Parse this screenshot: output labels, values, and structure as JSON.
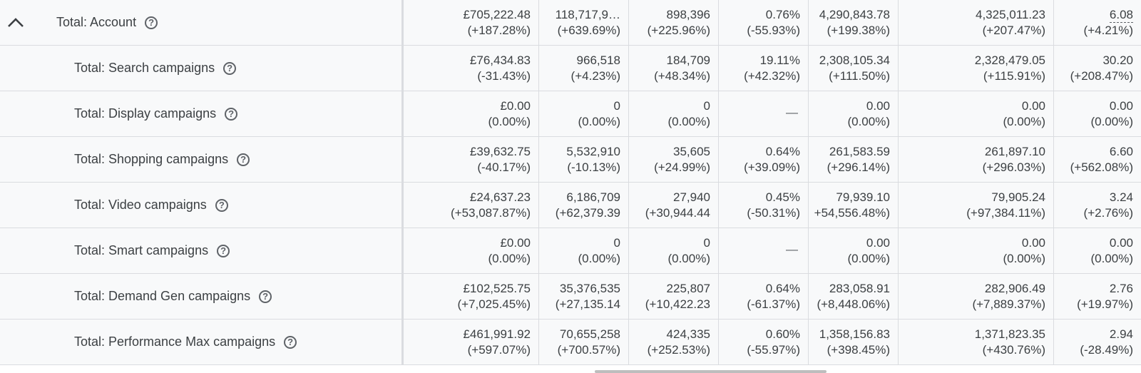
{
  "rows": [
    {
      "label": "Total: Account",
      "cells": [
        {
          "value": "£705,222.48",
          "change": "(+187.28%)"
        },
        {
          "value": "118,717,9…",
          "change": "(+639.69%)"
        },
        {
          "value": "898,396",
          "change": "(+225.96%)"
        },
        {
          "value": "0.76%",
          "change": "(-55.93%)"
        },
        {
          "value": "4,290,843.78",
          "change": "(+199.38%)"
        },
        {
          "value": "4,325,011.23",
          "change": "(+207.47%)"
        },
        {
          "value": "6.08",
          "change": "(+4.21%)"
        }
      ]
    },
    {
      "label": "Total: Search campaigns",
      "cells": [
        {
          "value": "£76,434.83",
          "change": "(-31.43%)"
        },
        {
          "value": "966,518",
          "change": "(+4.23%)"
        },
        {
          "value": "184,709",
          "change": "(+48.34%)"
        },
        {
          "value": "19.11%",
          "change": "(+42.32%)"
        },
        {
          "value": "2,308,105.34",
          "change": "(+111.50%)"
        },
        {
          "value": "2,328,479.05",
          "change": "(+115.91%)"
        },
        {
          "value": "30.20",
          "change": "(+208.47%)"
        }
      ]
    },
    {
      "label": "Total: Display campaigns",
      "cells": [
        {
          "value": "£0.00",
          "change": "(0.00%)"
        },
        {
          "value": "0",
          "change": "(0.00%)"
        },
        {
          "value": "0",
          "change": "(0.00%)"
        },
        {
          "value": "",
          "change": "",
          "dash": "—"
        },
        {
          "value": "0.00",
          "change": "(0.00%)"
        },
        {
          "value": "0.00",
          "change": "(0.00%)"
        },
        {
          "value": "0.00",
          "change": "(0.00%)"
        }
      ]
    },
    {
      "label": "Total: Shopping campaigns",
      "cells": [
        {
          "value": "£39,632.75",
          "change": "(-40.17%)"
        },
        {
          "value": "5,532,910",
          "change": "(-10.13%)"
        },
        {
          "value": "35,605",
          "change": "(+24.99%)"
        },
        {
          "value": "0.64%",
          "change": "(+39.09%)"
        },
        {
          "value": "261,583.59",
          "change": "(+296.14%)"
        },
        {
          "value": "261,897.10",
          "change": "(+296.03%)"
        },
        {
          "value": "6.60",
          "change": "(+562.08%)"
        }
      ]
    },
    {
      "label": "Total: Video campaigns",
      "cells": [
        {
          "value": "£24,637.23",
          "change": "(+53,087.87%)"
        },
        {
          "value": "6,186,709",
          "change": "(+62,379.39"
        },
        {
          "value": "27,940",
          "change": "(+30,944.44"
        },
        {
          "value": "0.45%",
          "change": "(-50.31%)"
        },
        {
          "value": "79,939.10",
          "change": "+54,556.48%)"
        },
        {
          "value": "79,905.24",
          "change": "(+97,384.11%)"
        },
        {
          "value": "3.24",
          "change": "(+2.76%)"
        }
      ]
    },
    {
      "label": "Total: Smart campaigns",
      "cells": [
        {
          "value": "£0.00",
          "change": "(0.00%)"
        },
        {
          "value": "0",
          "change": "(0.00%)"
        },
        {
          "value": "0",
          "change": "(0.00%)"
        },
        {
          "value": "",
          "change": "",
          "dash": "—"
        },
        {
          "value": "0.00",
          "change": "(0.00%)"
        },
        {
          "value": "0.00",
          "change": "(0.00%)"
        },
        {
          "value": "0.00",
          "change": "(0.00%)"
        }
      ]
    },
    {
      "label": "Total: Demand Gen campaigns",
      "cells": [
        {
          "value": "£102,525.75",
          "change": "(+7,025.45%)"
        },
        {
          "value": "35,376,535",
          "change": "(+27,135.14"
        },
        {
          "value": "225,807",
          "change": "(+10,422.23"
        },
        {
          "value": "0.64%",
          "change": "(-61.37%)"
        },
        {
          "value": "283,058.91",
          "change": "(+8,448.06%)"
        },
        {
          "value": "282,906.49",
          "change": "(+7,889.37%)"
        },
        {
          "value": "2.76",
          "change": "(+19.97%)"
        }
      ]
    },
    {
      "label": "Total: Performance Max campaigns",
      "cells": [
        {
          "value": "£461,991.92",
          "change": "(+597.07%)"
        },
        {
          "value": "70,655,258",
          "change": "(+700.57%)"
        },
        {
          "value": "424,335",
          "change": "(+252.53%)"
        },
        {
          "value": "0.60%",
          "change": "(-55.97%)"
        },
        {
          "value": "1,358,156.83",
          "change": "(+398.45%)"
        },
        {
          "value": "1,371,823.35",
          "change": "(+430.76%)"
        },
        {
          "value": "2.94",
          "change": "(-28.49%)"
        }
      ]
    }
  ],
  "icons": {
    "collapse": "chevron-up-icon",
    "help": "help-circle-icon",
    "help_glyph": "?"
  },
  "colors": {
    "row_bg": "#f8f9fa",
    "border": "#dadce0",
    "text": "#3c4043"
  }
}
